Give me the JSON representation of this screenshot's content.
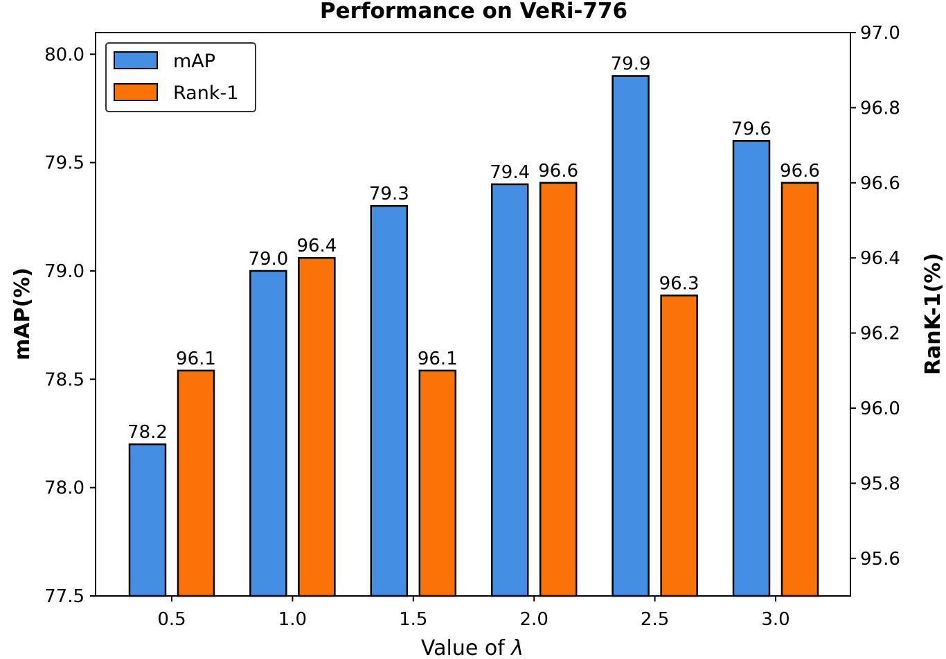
{
  "chart_data": {
    "type": "bar",
    "title": "Performance on VeRi-776",
    "xlabel_text": "Value of ",
    "xlabel_symbol": "λ",
    "ylabel_left": "mAP(%)",
    "ylabel_right": "RanK-1(%)",
    "categories": [
      "0.5",
      "1.0",
      "1.5",
      "2.0",
      "2.5",
      "3.0"
    ],
    "series": [
      {
        "name": "mAP",
        "axis": "left",
        "color": "#448EE4",
        "values": [
          78.2,
          79.0,
          79.3,
          79.4,
          79.9,
          79.6
        ],
        "labels": [
          "78.2",
          "79.0",
          "79.3",
          "79.4",
          "79.9",
          "79.6"
        ]
      },
      {
        "name": "Rank-1",
        "axis": "right",
        "color": "#F97306",
        "values": [
          96.1,
          96.4,
          96.1,
          96.6,
          96.3,
          96.6
        ],
        "labels": [
          "96.1",
          "96.4",
          "96.1",
          "96.6",
          "96.3",
          "96.6"
        ]
      }
    ],
    "ylim_left": [
      77.5,
      80.1
    ],
    "ylim_right": [
      95.5,
      97.0
    ],
    "yticks_left": [
      "77.5",
      "78.0",
      "78.5",
      "79.0",
      "79.5",
      "80.0"
    ],
    "yticks_right": [
      "95.6",
      "95.8",
      "96.0",
      "96.2",
      "96.4",
      "96.6",
      "96.8",
      "97.0"
    ],
    "legend_position": "top-left",
    "grid": false
  }
}
